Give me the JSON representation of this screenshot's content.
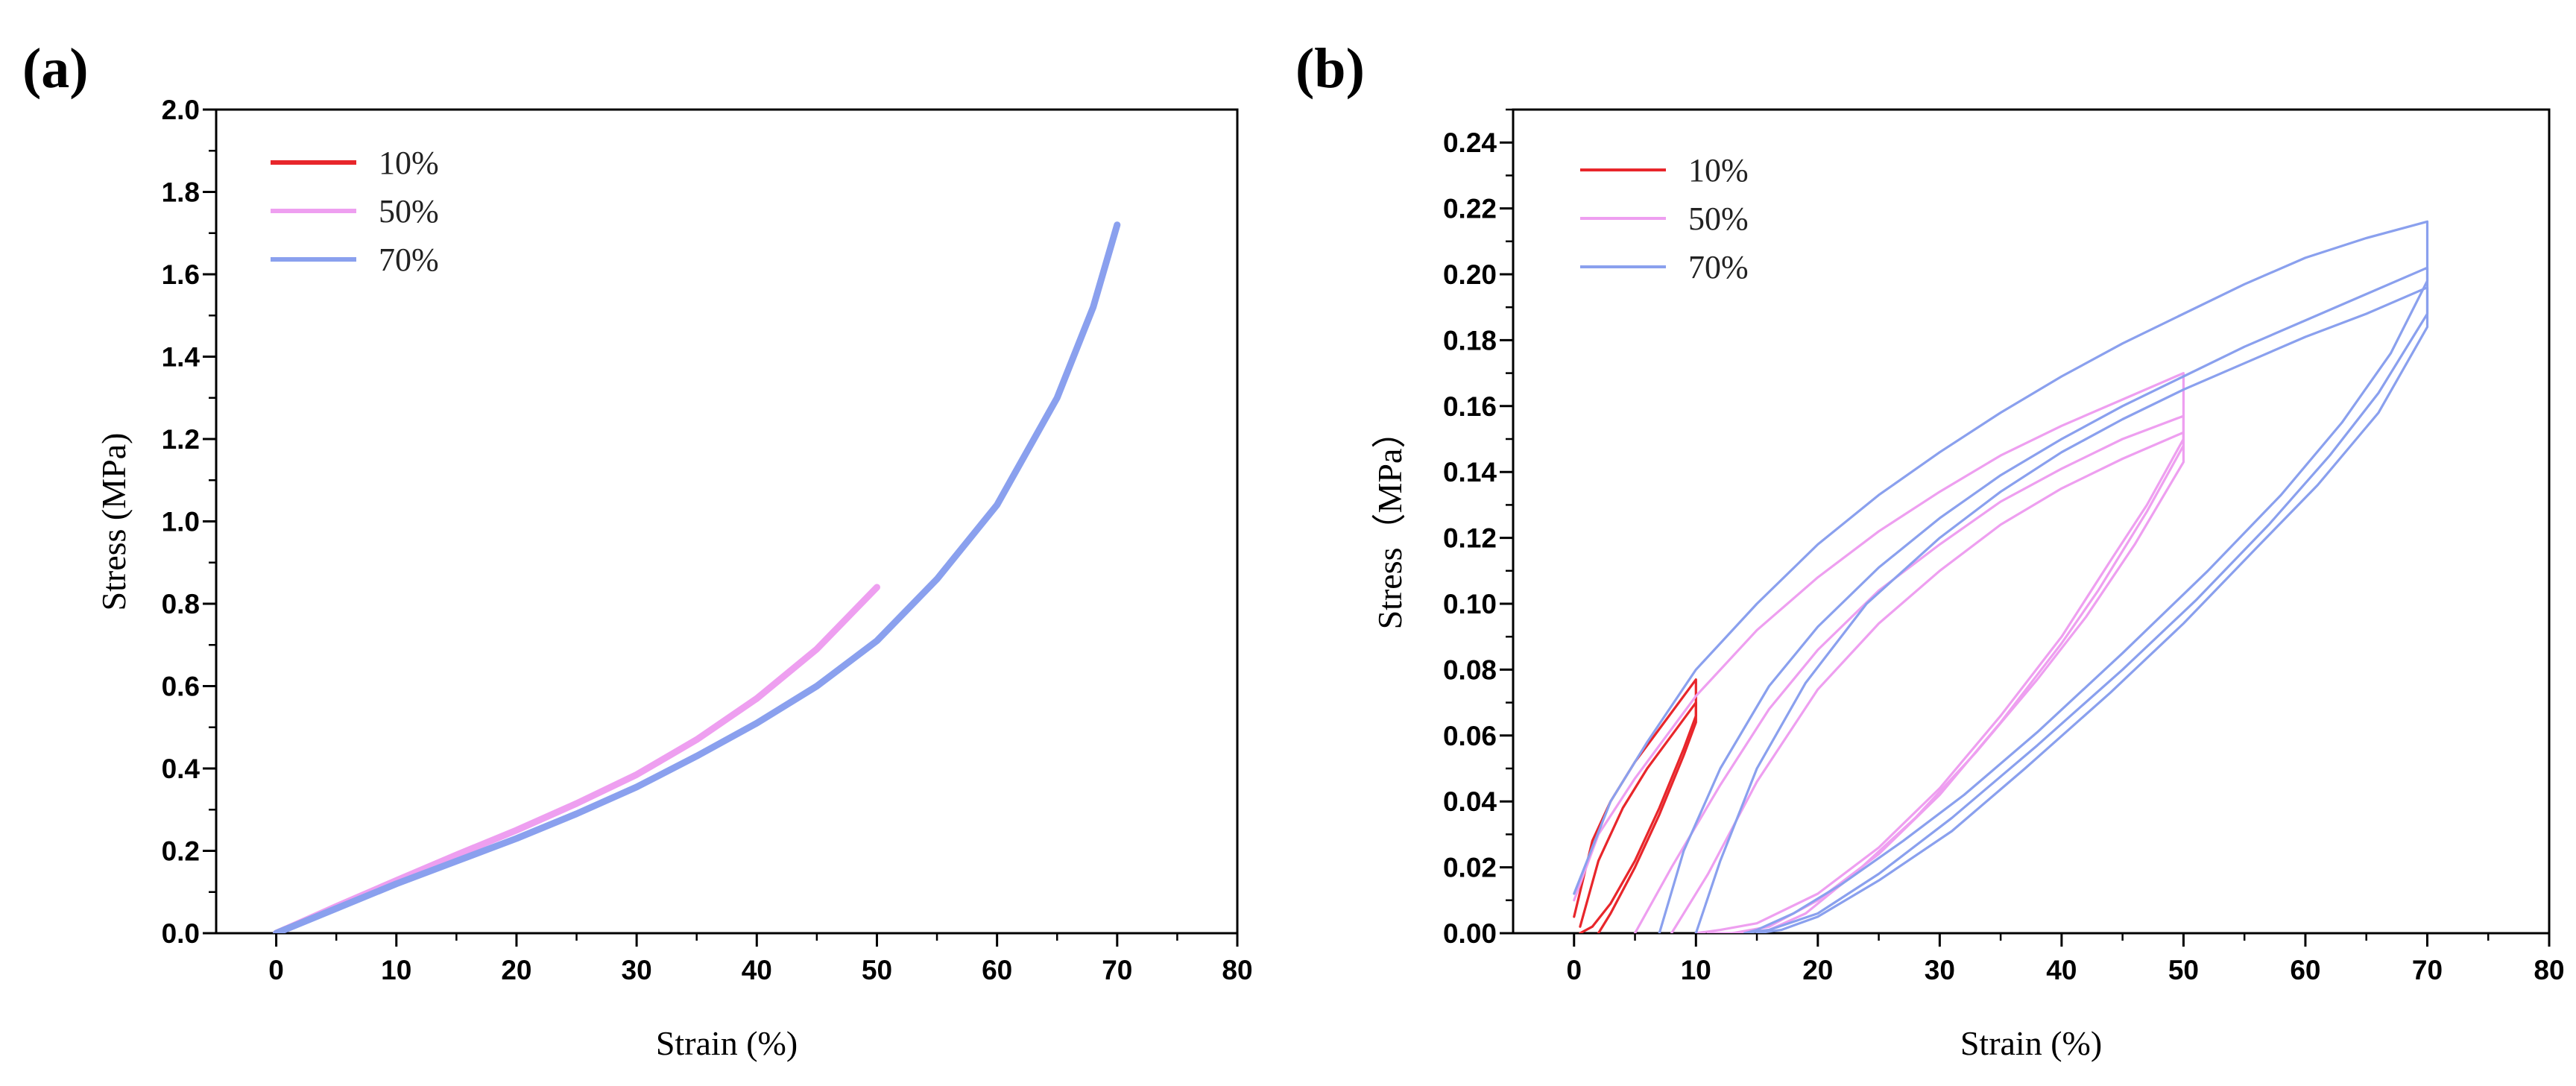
{
  "chart_data": [
    {
      "panel": "(a)",
      "type": "line",
      "xlabel": "Strain (%)",
      "ylabel": "Stress (MPa)",
      "xlim": [
        -5,
        80
      ],
      "ylim": [
        0,
        2.0
      ],
      "xticks": [
        0,
        10,
        20,
        30,
        40,
        50,
        60,
        70,
        80
      ],
      "yticks": [
        0.0,
        0.2,
        0.4,
        0.6,
        0.8,
        1.0,
        1.2,
        1.4,
        1.6,
        1.8,
        2.0
      ],
      "xtick_labels": [
        "0",
        "10",
        "20",
        "30",
        "40",
        "50",
        "60",
        "70",
        "80"
      ],
      "ytick_labels": [
        "0.0",
        "0.2",
        "0.4",
        "0.6",
        "0.8",
        "1.0",
        "1.2",
        "1.4",
        "1.6",
        "1.8",
        "2.0"
      ],
      "legend": "top-left",
      "series": [
        {
          "name": "10%",
          "color": "#e8262b",
          "x": [
            0,
            2,
            4,
            6,
            8,
            10
          ],
          "y": [
            0.0,
            0.025,
            0.05,
            0.074,
            0.098,
            0.122
          ]
        },
        {
          "name": "50%",
          "color": "#ee9ff0",
          "x": [
            0,
            5,
            10,
            15,
            20,
            25,
            30,
            35,
            40,
            45,
            50
          ],
          "y": [
            0.0,
            0.065,
            0.128,
            0.19,
            0.25,
            0.315,
            0.385,
            0.47,
            0.57,
            0.69,
            0.84
          ]
        },
        {
          "name": "70%",
          "color": "#8aa0ee",
          "x": [
            0,
            5,
            10,
            15,
            20,
            25,
            30,
            35,
            40,
            45,
            50,
            55,
            60,
            65,
            68,
            70
          ],
          "y": [
            0.0,
            0.06,
            0.12,
            0.175,
            0.23,
            0.29,
            0.355,
            0.43,
            0.51,
            0.6,
            0.71,
            0.86,
            1.04,
            1.3,
            1.52,
            1.72
          ]
        }
      ]
    },
    {
      "panel": "(b)",
      "type": "line",
      "xlabel": "Strain (%)",
      "ylabel": "Stress（MPa）",
      "xlim": [
        -5,
        80
      ],
      "ylim": [
        0,
        0.25
      ],
      "xticks": [
        0,
        10,
        20,
        30,
        40,
        50,
        60,
        70,
        80
      ],
      "yticks": [
        0.0,
        0.02,
        0.04,
        0.06,
        0.08,
        0.1,
        0.12,
        0.14,
        0.16,
        0.18,
        0.2,
        0.22,
        0.24
      ],
      "xtick_labels": [
        "0",
        "10",
        "20",
        "30",
        "40",
        "50",
        "60",
        "70",
        "80"
      ],
      "ytick_labels": [
        "0.00",
        "0.02",
        "0.04",
        "0.06",
        "0.08",
        "0.10",
        "0.12",
        "0.14",
        "0.16",
        "0.18",
        "0.20",
        "0.22",
        "0.24"
      ],
      "legend": "top-left",
      "series": [
        {
          "name": "10%",
          "color": "#e8262b",
          "cycles": [
            {
              "x": [
                0,
                1.5,
                3,
                5,
                7,
                9,
                10,
                10,
                9,
                7,
                5,
                3,
                1.5,
                0.5
              ],
              "y": [
                0.005,
                0.028,
                0.04,
                0.052,
                0.062,
                0.072,
                0.077,
                0.066,
                0.056,
                0.038,
                0.022,
                0.009,
                0.002,
                0.0
              ]
            },
            {
              "x": [
                0.5,
                2,
                4,
                6,
                8,
                10,
                10,
                9,
                7,
                5,
                3,
                2
              ],
              "y": [
                0.002,
                0.022,
                0.038,
                0.05,
                0.06,
                0.07,
                0.064,
                0.054,
                0.036,
                0.02,
                0.006,
                0.0
              ]
            }
          ]
        },
        {
          "name": "50%",
          "color": "#ee9ff0",
          "cycles": [
            {
              "x": [
                0,
                2,
                5,
                10,
                15,
                20,
                25,
                30,
                35,
                40,
                45,
                50,
                50,
                47,
                44,
                40,
                35,
                30,
                25,
                20,
                15,
                12,
                10
              ],
              "y": [
                0.01,
                0.03,
                0.047,
                0.072,
                0.092,
                0.108,
                0.122,
                0.134,
                0.145,
                0.154,
                0.162,
                0.17,
                0.15,
                0.13,
                0.113,
                0.09,
                0.066,
                0.044,
                0.026,
                0.012,
                0.003,
                0.001,
                0.0
              ]
            },
            {
              "x": [
                5,
                8,
                12,
                16,
                20,
                25,
                30,
                35,
                40,
                45,
                50,
                50,
                47,
                43,
                40,
                35,
                30,
                25,
                20,
                16,
                13,
                11
              ],
              "y": [
                0.0,
                0.02,
                0.045,
                0.068,
                0.086,
                0.104,
                0.118,
                0.131,
                0.141,
                0.15,
                0.157,
                0.148,
                0.128,
                0.104,
                0.088,
                0.064,
                0.042,
                0.024,
                0.01,
                0.002,
                0.0,
                0.0
              ]
            },
            {
              "x": [
                8,
                11,
                15,
                20,
                25,
                30,
                35,
                40,
                45,
                50,
                50,
                46,
                42,
                38,
                33,
                28,
                23,
                19,
                16,
                13
              ],
              "y": [
                0.0,
                0.018,
                0.046,
                0.074,
                0.094,
                0.11,
                0.124,
                0.135,
                0.144,
                0.152,
                0.143,
                0.118,
                0.096,
                0.077,
                0.055,
                0.035,
                0.018,
                0.006,
                0.001,
                0.0
              ]
            }
          ]
        },
        {
          "name": "70%",
          "color": "#8aa0ee",
          "cycles": [
            {
              "x": [
                0,
                3,
                6,
                10,
                15,
                20,
                25,
                30,
                35,
                40,
                45,
                50,
                55,
                60,
                65,
                70,
                70,
                67,
                63,
                58,
                52,
                45,
                38,
                32,
                27,
                22,
                18,
                15,
                14
              ],
              "y": [
                0.012,
                0.04,
                0.058,
                0.08,
                0.1,
                0.118,
                0.133,
                0.146,
                0.158,
                0.169,
                0.179,
                0.188,
                0.197,
                0.205,
                0.211,
                0.216,
                0.198,
                0.176,
                0.155,
                0.133,
                0.11,
                0.085,
                0.061,
                0.042,
                0.028,
                0.015,
                0.006,
                0.001,
                0.0
              ]
            },
            {
              "x": [
                7,
                9,
                12,
                16,
                20,
                25,
                30,
                35,
                40,
                45,
                50,
                55,
                60,
                65,
                70,
                70,
                66,
                62,
                57,
                51,
                45,
                38,
                31,
                25,
                20,
                16,
                14
              ],
              "y": [
                0.0,
                0.025,
                0.05,
                0.075,
                0.093,
                0.111,
                0.126,
                0.139,
                0.15,
                0.16,
                0.169,
                0.178,
                0.186,
                0.194,
                0.202,
                0.188,
                0.164,
                0.145,
                0.124,
                0.101,
                0.08,
                0.057,
                0.035,
                0.018,
                0.006,
                0.001,
                0.0
              ]
            },
            {
              "x": [
                10,
                12,
                15,
                19,
                24,
                30,
                35,
                40,
                45,
                50,
                55,
                60,
                65,
                70,
                70,
                66,
                61,
                56,
                50,
                44,
                37,
                31,
                25,
                20,
                17,
                15
              ],
              "y": [
                0.0,
                0.022,
                0.05,
                0.076,
                0.1,
                0.12,
                0.134,
                0.146,
                0.156,
                0.165,
                0.173,
                0.181,
                0.188,
                0.196,
                0.184,
                0.158,
                0.136,
                0.117,
                0.094,
                0.073,
                0.05,
                0.031,
                0.016,
                0.005,
                0.001,
                0.0
              ]
            }
          ]
        }
      ]
    }
  ]
}
